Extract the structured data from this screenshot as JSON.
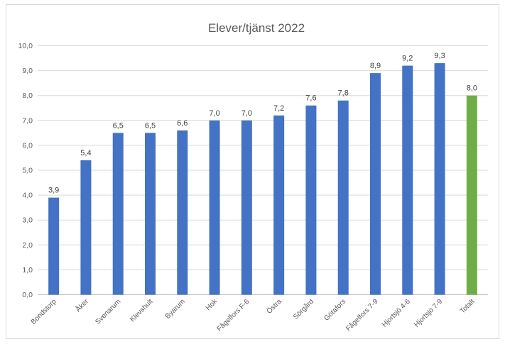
{
  "chart_data": {
    "type": "bar",
    "title": "Elever/tjänst 2022",
    "categories": [
      "Bondstorp",
      "Åker",
      "Svenarum",
      "Klevshult",
      "Byarum",
      "Hok",
      "Fågelfors F-6",
      "Östra",
      "Sörgård",
      "Götafors",
      "Fågelfors 7-9",
      "Hjortsjö 4-6",
      "Hjortsjö 7-9",
      "Totalt"
    ],
    "values": [
      3.9,
      5.4,
      6.5,
      6.5,
      6.6,
      7.0,
      7.0,
      7.2,
      7.6,
      7.8,
      8.9,
      9.2,
      9.3,
      8.0
    ],
    "data_labels": [
      "3,9",
      "5,4",
      "6,5",
      "6,5",
      "6,6",
      "7,0",
      "7,0",
      "7,2",
      "7,6",
      "7,8",
      "8,9",
      "9,2",
      "9,3",
      "8,0"
    ],
    "ylim": [
      0,
      10
    ],
    "yticks": [
      "0,0",
      "1,0",
      "2,0",
      "3,0",
      "4,0",
      "5,0",
      "6,0",
      "7,0",
      "8,0",
      "9,0",
      "10,0"
    ],
    "xlabel": "",
    "ylabel": "",
    "grid": true,
    "colors": {
      "bar": "#4472c4",
      "highlight": "#70ad47"
    },
    "highlight_category": "Totalt"
  }
}
